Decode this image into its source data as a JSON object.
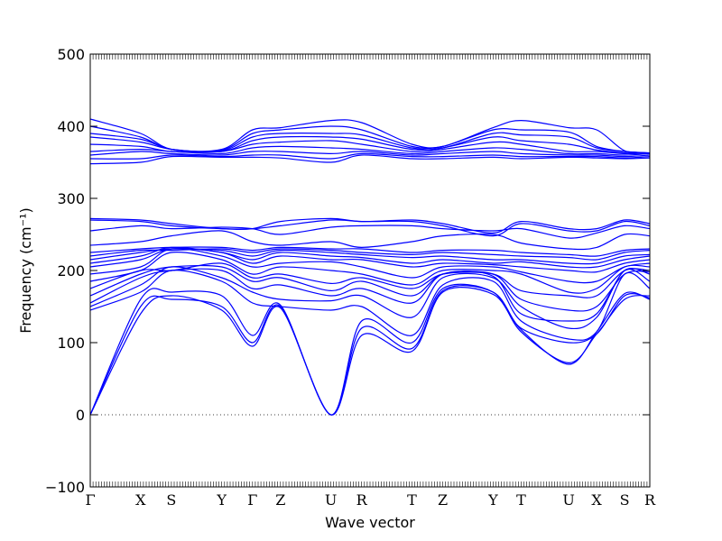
{
  "chart_data": {
    "type": "line",
    "title": "",
    "xlabel": "Wave vector",
    "ylabel": "Frequency (cm⁻¹)",
    "ylim": [
      -100,
      500
    ],
    "yticks": [
      -100,
      0,
      100,
      200,
      300,
      400,
      500
    ],
    "grid": false,
    "zero_line": "dotted",
    "line_color": "#0000ff",
    "x_range": [
      0,
      100
    ],
    "kpoints": [
      {
        "label": "Γ",
        "x": 0
      },
      {
        "label": "X",
        "x": 9
      },
      {
        "label": "S",
        "x": 14.5
      },
      {
        "label": "Y",
        "x": 23.5
      },
      {
        "label": "Γ",
        "x": 29
      },
      {
        "label": "Z",
        "x": 34
      },
      {
        "label": "U",
        "x": 43
      },
      {
        "label": "R",
        "x": 48.5
      },
      {
        "label": "T",
        "x": 57.5
      },
      {
        "label": "Z",
        "x": 63
      },
      {
        "label": "Y",
        "x": 72
      },
      {
        "label": "T",
        "x": 77
      },
      {
        "label": "U",
        "x": 85.5
      },
      {
        "label": "X",
        "x": 90.5
      },
      {
        "label": "S",
        "x": 95.5
      },
      {
        "label": "R",
        "x": 100
      }
    ],
    "series": [
      {
        "y": [
          0,
          140,
          165,
          145,
          95,
          148,
          0,
          110,
          88,
          170,
          167,
          120,
          100,
          112,
          165,
          162,
          168
        ]
      },
      {
        "y": [
          0,
          150,
          160,
          150,
          100,
          150,
          0,
          120,
          92,
          172,
          170,
          118,
          70,
          115,
          168,
          160,
          170
        ]
      },
      {
        "y": [
          0,
          160,
          170,
          165,
          110,
          152,
          0,
          130,
          100,
          175,
          170,
          115,
          72,
          112,
          160,
          165,
          168
        ]
      },
      {
        "y": [
          145,
          170,
          200,
          185,
          155,
          150,
          145,
          150,
          110,
          180,
          185,
          130,
          105,
          115,
          195,
          175,
          172
        ]
      },
      {
        "y": [
          150,
          180,
          205,
          190,
          170,
          160,
          158,
          165,
          135,
          190,
          190,
          150,
          120,
          135,
          200,
          185,
          180
        ]
      },
      {
        "y": [
          155,
          190,
          200,
          200,
          175,
          180,
          165,
          175,
          155,
          195,
          192,
          140,
          130,
          140,
          200,
          195,
          190
        ]
      },
      {
        "y": [
          165,
          195,
          205,
          205,
          185,
          190,
          172,
          185,
          165,
          195,
          195,
          160,
          145,
          150,
          195,
          198,
          195
        ]
      },
      {
        "y": [
          175,
          200,
          200,
          210,
          190,
          195,
          182,
          190,
          175,
          195,
          195,
          172,
          165,
          165,
          200,
          200,
          200
        ]
      },
      {
        "y": [
          185,
          200,
          225,
          215,
          195,
          205,
          200,
          195,
          180,
          200,
          200,
          195,
          170,
          175,
          205,
          205,
          202
        ]
      },
      {
        "y": [
          195,
          205,
          230,
          220,
          205,
          210,
          212,
          205,
          190,
          205,
          205,
          198,
          185,
          185,
          205,
          210,
          205
        ]
      },
      {
        "y": [
          205,
          215,
          230,
          225,
          210,
          220,
          215,
          215,
          205,
          210,
          208,
          205,
          200,
          198,
          210,
          215,
          210
        ]
      },
      {
        "y": [
          210,
          220,
          232,
          225,
          215,
          225,
          220,
          218,
          210,
          215,
          210,
          212,
          205,
          205,
          215,
          220,
          215
        ]
      },
      {
        "y": [
          215,
          225,
          230,
          228,
          220,
          228,
          225,
          222,
          218,
          220,
          215,
          215,
          210,
          210,
          220,
          222,
          220
        ]
      },
      {
        "y": [
          220,
          228,
          228,
          230,
          225,
          230,
          228,
          225,
          222,
          225,
          222,
          220,
          218,
          215,
          225,
          228,
          225
        ]
      },
      {
        "y": [
          225,
          230,
          232,
          232,
          228,
          232,
          230,
          230,
          225,
          228,
          228,
          225,
          222,
          220,
          228,
          230,
          227
        ]
      },
      {
        "y": [
          235,
          240,
          248,
          255,
          240,
          235,
          240,
          232,
          240,
          248,
          250,
          238,
          230,
          232,
          250,
          248,
          250
        ]
      },
      {
        "y": [
          255,
          262,
          258,
          260,
          258,
          250,
          260,
          262,
          262,
          258,
          255,
          258,
          245,
          252,
          262,
          258,
          258
        ]
      },
      {
        "y": [
          270,
          268,
          262,
          258,
          258,
          262,
          270,
          268,
          268,
          262,
          248,
          265,
          255,
          255,
          268,
          262,
          257
        ]
      },
      {
        "y": [
          272,
          270,
          265,
          258,
          258,
          268,
          272,
          268,
          270,
          265,
          252,
          268,
          258,
          258,
          270,
          265,
          258
        ]
      },
      {
        "y": [
          348,
          350,
          358,
          357,
          357,
          356,
          350,
          360,
          355,
          355,
          357,
          355,
          357,
          356,
          355,
          356,
          358
        ]
      },
      {
        "y": [
          355,
          355,
          360,
          358,
          360,
          360,
          355,
          362,
          358,
          358,
          360,
          358,
          358,
          358,
          356,
          358,
          360
        ]
      },
      {
        "y": [
          360,
          365,
          362,
          360,
          365,
          365,
          362,
          365,
          360,
          362,
          365,
          362,
          360,
          360,
          358,
          360,
          361
        ]
      },
      {
        "y": [
          365,
          368,
          365,
          362,
          370,
          372,
          370,
          368,
          362,
          365,
          370,
          368,
          362,
          362,
          360,
          362,
          362
        ]
      },
      {
        "y": [
          375,
          372,
          365,
          365,
          375,
          378,
          380,
          375,
          365,
          368,
          378,
          375,
          365,
          365,
          362,
          363,
          362
        ]
      },
      {
        "y": [
          385,
          378,
          368,
          365,
          380,
          385,
          385,
          382,
          368,
          370,
          385,
          380,
          375,
          367,
          363,
          363,
          362
        ]
      },
      {
        "y": [
          390,
          382,
          368,
          366,
          385,
          390,
          390,
          388,
          370,
          370,
          390,
          388,
          385,
          370,
          365,
          363,
          362
        ]
      },
      {
        "y": [
          400,
          385,
          368,
          367,
          390,
          395,
          400,
          395,
          372,
          372,
          395,
          395,
          392,
          372,
          365,
          363,
          362
        ]
      },
      {
        "y": [
          410,
          390,
          368,
          368,
          395,
          398,
          408,
          405,
          375,
          372,
          398,
          408,
          398,
          395,
          366,
          363,
          362
        ]
      }
    ]
  }
}
